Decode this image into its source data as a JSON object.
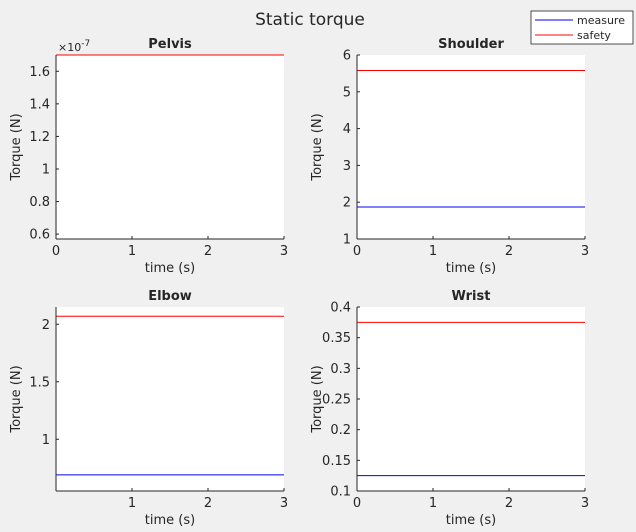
{
  "figure": {
    "title": "Static torque",
    "legend": {
      "placement": "top-right",
      "entries": [
        {
          "name": "measure",
          "color": "#0000ff"
        },
        {
          "name": "safety",
          "color": "#ff0000"
        }
      ]
    }
  },
  "chart_data": [
    {
      "type": "line",
      "title": "Pelvis",
      "xlabel": "time (s)",
      "ylabel": "Torque (N)",
      "xlim": [
        0,
        3
      ],
      "ylim": [
        0.57,
        1.7
      ],
      "exponent_label": "×10",
      "exponent_power": "-7",
      "xticks": [
        0,
        1,
        2,
        3
      ],
      "xtick_labels": [
        "0",
        "1",
        "2",
        "3"
      ],
      "yticks": [
        0.6,
        0.8,
        1.0,
        1.2,
        1.4,
        1.6
      ],
      "ytick_labels": [
        "0.6",
        "0.8",
        "1",
        "1.2",
        "1.4",
        "1.6"
      ],
      "grid": false,
      "x": [
        0,
        3
      ],
      "series": [
        {
          "name": "measure",
          "color": "#0000ff",
          "values": [
            0.57,
            0.57
          ]
        },
        {
          "name": "safety",
          "color": "#ff0000",
          "values": [
            1.7,
            1.7
          ]
        }
      ]
    },
    {
      "type": "line",
      "title": "Shoulder",
      "xlabel": "time (s)",
      "ylabel": "Torque (N)",
      "xlim": [
        0,
        3
      ],
      "ylim": [
        1,
        6
      ],
      "xticks": [
        0,
        1,
        2,
        3
      ],
      "xtick_labels": [
        "0",
        "1",
        "2",
        "3"
      ],
      "yticks": [
        1,
        2,
        3,
        4,
        5,
        6
      ],
      "ytick_labels": [
        "1",
        "2",
        "3",
        "4",
        "5",
        "6"
      ],
      "grid": false,
      "x": [
        0,
        3
      ],
      "series": [
        {
          "name": "measure",
          "color": "#0000ff",
          "values": [
            1.87,
            1.87
          ]
        },
        {
          "name": "safety",
          "color": "#ff0000",
          "values": [
            5.58,
            5.58
          ]
        }
      ]
    },
    {
      "type": "line",
      "title": "Elbow",
      "xlabel": "time (s)",
      "ylabel": "Torque (N)",
      "xlim": [
        0,
        3
      ],
      "ylim": [
        0.55,
        2.15
      ],
      "xticks": [
        1,
        2,
        3
      ],
      "xtick_labels": [
        "1",
        "2",
        "3"
      ],
      "yticks": [
        1.0,
        1.5,
        2.0
      ],
      "ytick_labels": [
        "1",
        "1.5",
        "2"
      ],
      "grid": false,
      "x": [
        0,
        3
      ],
      "series": [
        {
          "name": "measure",
          "color": "#0000ff",
          "values": [
            0.69,
            0.69
          ]
        },
        {
          "name": "safety",
          "color": "#ff0000",
          "values": [
            2.07,
            2.07
          ]
        }
      ]
    },
    {
      "type": "line",
      "title": "Wrist",
      "xlabel": "time (s)",
      "ylabel": "Torque (N)",
      "xlim": [
        0,
        3
      ],
      "ylim": [
        0.1,
        0.4
      ],
      "xticks": [
        0,
        1,
        2,
        3
      ],
      "xtick_labels": [
        "0",
        "1",
        "2",
        "3"
      ],
      "yticks": [
        0.1,
        0.15,
        0.2,
        0.25,
        0.3,
        0.35,
        0.4
      ],
      "ytick_labels": [
        "0.1",
        "0.15",
        "0.2",
        "0.25",
        "0.3",
        "0.35",
        "0.4"
      ],
      "grid": false,
      "x": [
        0,
        3
      ],
      "series": [
        {
          "name": "measure",
          "color": "#0000ff",
          "values": [
            0.125,
            0.125
          ]
        },
        {
          "name": "safety",
          "color": "#ff0000",
          "values": [
            0.375,
            0.375
          ]
        }
      ]
    }
  ]
}
